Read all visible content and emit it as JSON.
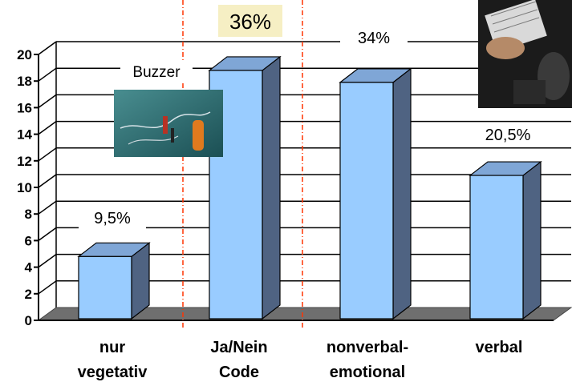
{
  "chart_data": {
    "type": "bar",
    "categories": [
      [
        "nur",
        "vegetativ"
      ],
      [
        "Ja/Nein",
        "Code"
      ],
      [
        "nonverbal-",
        "emotional"
      ],
      [
        "verbal"
      ]
    ],
    "values": [
      4.8,
      18.8,
      17.9,
      10.9
    ],
    "ylim": [
      0,
      20
    ],
    "yticks": [
      0,
      2,
      4,
      6,
      8,
      10,
      12,
      14,
      16,
      18,
      20
    ],
    "grid": true,
    "percent_labels": [
      "9,5%",
      "36%",
      "34%",
      "20,5%"
    ],
    "annotation": "Buzzer",
    "colors": {
      "bar_front": "#99ccff",
      "bar_side": "#4f6382",
      "bar_top": "#7fa6d6",
      "floor": "#6f6f6f",
      "divider": "#ff3300",
      "highlight_box": "#f6efc4"
    }
  }
}
